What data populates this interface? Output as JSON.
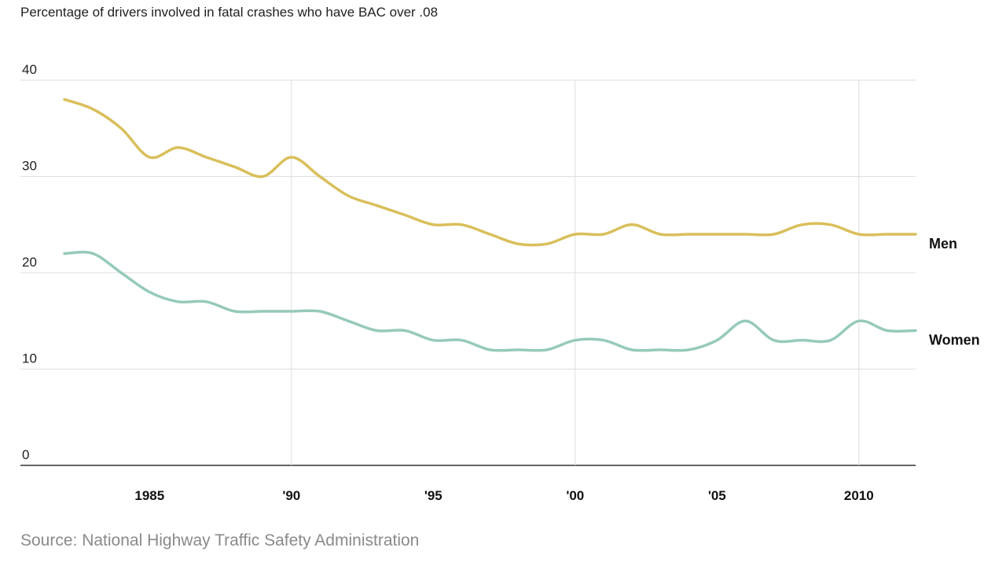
{
  "chart": {
    "title": "Percentage of drivers involved in fatal crashes who have BAC over .08",
    "source": "Source: National Highway Traffic Safety Administration"
  },
  "chart_data": {
    "type": "line",
    "title": "Percentage of drivers involved in fatal crashes who have BAC over .08",
    "xlabel": "",
    "ylabel": "",
    "xlim": [
      1982,
      2012
    ],
    "ylim": [
      0,
      40
    ],
    "y_ticks": [
      0,
      10,
      20,
      30,
      40
    ],
    "y_tick_labels": [
      "0",
      "10",
      "20",
      "30",
      "40"
    ],
    "x_ticks": [
      1985,
      1990,
      1995,
      2000,
      2005,
      2010
    ],
    "x_tick_labels": [
      "1985",
      "'90",
      "'95",
      "'00",
      "'05",
      "2010"
    ],
    "grid": true,
    "x": [
      1982,
      1983,
      1984,
      1985,
      1986,
      1987,
      1988,
      1989,
      1990,
      1991,
      1992,
      1993,
      1994,
      1995,
      1996,
      1997,
      1998,
      1999,
      2000,
      2001,
      2002,
      2003,
      2004,
      2005,
      2006,
      2007,
      2008,
      2009,
      2010,
      2011,
      2012
    ],
    "series": [
      {
        "name": "Men",
        "color": "#d9bf5b",
        "values": [
          38,
          37,
          35,
          32,
          33,
          32,
          31,
          30,
          32,
          30,
          28,
          27,
          26,
          25,
          25,
          24,
          23,
          23,
          24,
          24,
          25,
          24,
          24,
          24,
          24,
          24,
          25,
          25,
          24,
          24,
          24
        ]
      },
      {
        "name": "Women",
        "color": "#96cab8",
        "values": [
          22,
          22,
          20,
          18,
          17,
          17,
          16,
          16,
          16,
          16,
          15,
          14,
          14,
          13,
          13,
          12,
          12,
          12,
          13,
          13,
          12,
          12,
          12,
          13,
          15,
          13,
          13,
          13,
          15,
          14,
          14
        ]
      }
    ],
    "legend": "inline-right"
  }
}
